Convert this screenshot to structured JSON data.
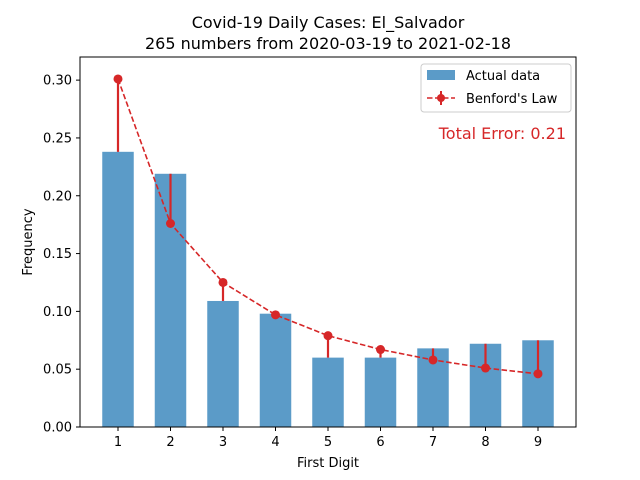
{
  "chart_data": {
    "type": "bar",
    "title": "Covid-19 Daily Cases: El_Salvador",
    "subtitle": "265 numbers from 2020-03-19 to 2021-02-18",
    "xlabel": "First Digit",
    "ylabel": "Frequency",
    "categories": [
      "1",
      "2",
      "3",
      "4",
      "5",
      "6",
      "7",
      "8",
      "9"
    ],
    "ylim": [
      0,
      0.32
    ],
    "yticks": [
      "0.00",
      "0.05",
      "0.10",
      "0.15",
      "0.20",
      "0.25",
      "0.30"
    ],
    "grid": false,
    "legend_position": "top-right",
    "series": [
      {
        "name": "Actual data",
        "kind": "bar",
        "color": "#5b9bc8",
        "values": [
          0.238,
          0.219,
          0.109,
          0.098,
          0.06,
          0.06,
          0.068,
          0.072,
          0.075
        ]
      },
      {
        "name": "Benford's Law",
        "kind": "line-dashed-markers-with-error-bars",
        "color": "#d62728",
        "values": [
          0.301,
          0.176,
          0.125,
          0.097,
          0.079,
          0.067,
          0.058,
          0.051,
          0.046
        ]
      }
    ],
    "annotation": "Total Error: 0.21"
  }
}
